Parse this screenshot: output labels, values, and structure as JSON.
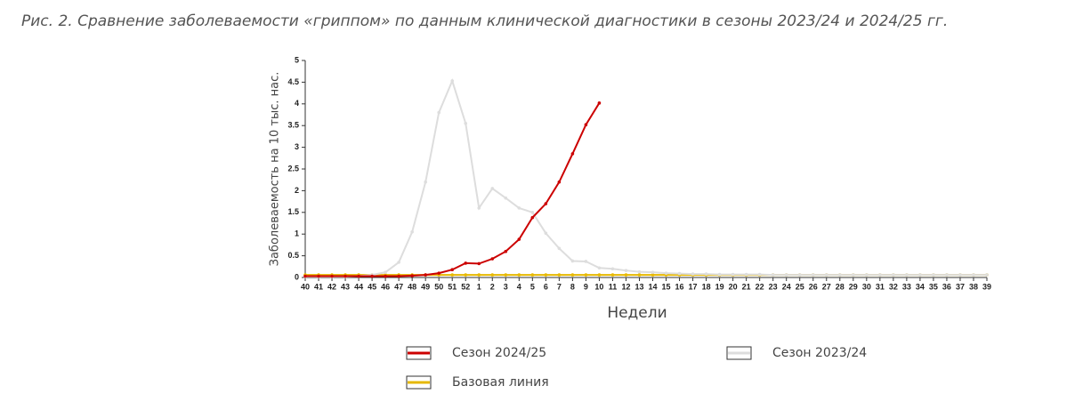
{
  "chart_data": {
    "type": "line",
    "title": "Рис. 2. Сравнение заболеваемости «гриппом» по данным клинической диагностики в сезоны 2023/24 и 2024/25 гг.",
    "x_label": "Недели",
    "y_label": "Заболеваемость на 10 тыс. нас.",
    "categories": [
      40,
      41,
      42,
      43,
      44,
      45,
      46,
      47,
      48,
      49,
      50,
      51,
      52,
      1,
      2,
      3,
      4,
      5,
      6,
      7,
      8,
      9,
      10,
      11,
      12,
      13,
      14,
      15,
      16,
      17,
      18,
      19,
      20,
      21,
      22,
      23,
      24,
      25,
      26,
      27,
      28,
      29,
      30,
      31,
      32,
      33,
      34,
      35,
      36,
      37,
      38,
      39
    ],
    "series": [
      {
        "name": "Сезон 2024/25",
        "color": "#cc0000",
        "values": [
          0.03,
          0.03,
          0.03,
          0.03,
          0.03,
          0.03,
          0.03,
          0.03,
          0.04,
          0.06,
          0.1,
          0.18,
          0.33,
          0.32,
          0.43,
          0.6,
          0.88,
          1.38,
          1.7,
          2.2,
          2.85,
          3.52,
          4.02,
          null,
          null,
          null,
          null,
          null,
          null,
          null,
          null,
          null,
          null,
          null,
          null,
          null,
          null,
          null,
          null,
          null,
          null,
          null,
          null,
          null,
          null,
          null,
          null,
          null,
          null,
          null,
          null,
          null
        ]
      },
      {
        "name": "Сезон 2023/24",
        "color": "#dddddd",
        "values": [
          0.02,
          0.02,
          0.02,
          0.02,
          0.03,
          0.06,
          0.12,
          0.35,
          1.05,
          2.2,
          3.8,
          4.53,
          3.55,
          1.6,
          2.05,
          1.83,
          1.6,
          1.5,
          1.02,
          0.67,
          0.38,
          0.37,
          0.22,
          0.2,
          0.16,
          0.13,
          0.12,
          0.1,
          0.09,
          0.08,
          0.08,
          0.07,
          0.07,
          0.07,
          0.07,
          0.06,
          0.06,
          0.06,
          0.06,
          0.06,
          0.06,
          0.06,
          0.06,
          0.06,
          0.06,
          0.06,
          0.06,
          0.06,
          0.06,
          0.06,
          0.06,
          0.06
        ]
      },
      {
        "name": "Базовая линия",
        "color": "#e6b800",
        "values": [
          0.06,
          0.06,
          0.06,
          0.06,
          0.06,
          0.06,
          0.06,
          0.06,
          0.06,
          0.06,
          0.06,
          0.06,
          0.06,
          0.06,
          0.06,
          0.06,
          0.06,
          0.06,
          0.06,
          0.06,
          0.06,
          0.06,
          0.06,
          0.06,
          0.06,
          0.06,
          0.06,
          0.06,
          0.06,
          0.06,
          0.06,
          0.06,
          0.06,
          0.06,
          0.06,
          0.06,
          0.06,
          0.06,
          0.06,
          0.06,
          0.06,
          0.06,
          0.06,
          0.06,
          0.06,
          0.06,
          0.06,
          0.06,
          0.06,
          0.06,
          0.06,
          0.06
        ]
      }
    ],
    "ylim": [
      0,
      5
    ],
    "yticks": [
      0,
      0.5,
      1,
      1.5,
      2,
      2.5,
      3,
      3.5,
      4,
      4.5,
      5
    ],
    "grid": false
  }
}
